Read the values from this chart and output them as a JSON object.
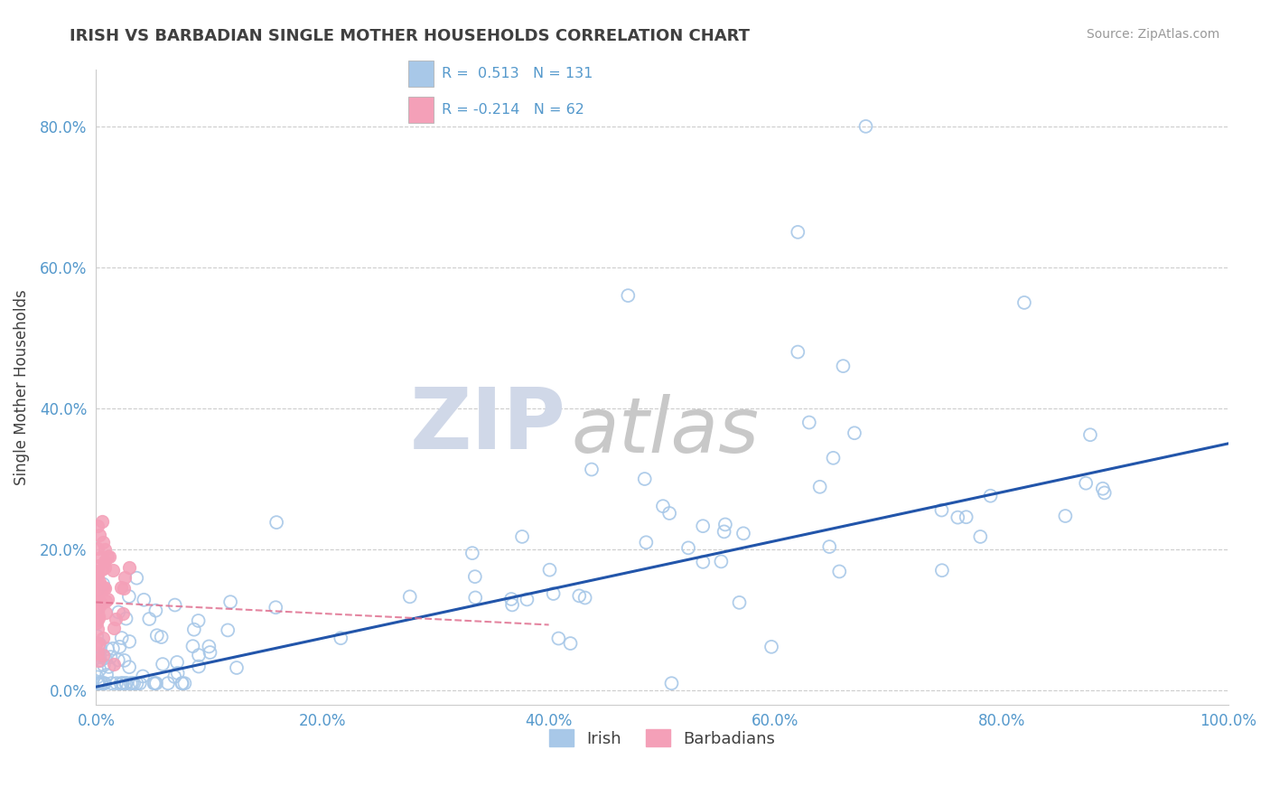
{
  "title": "IRISH VS BARBADIAN SINGLE MOTHER HOUSEHOLDS CORRELATION CHART",
  "source": "Source: ZipAtlas.com",
  "ylabel": "Single Mother Households",
  "xlim": [
    0.0,
    1.0
  ],
  "ylim": [
    -0.02,
    0.88
  ],
  "irish_R": 0.513,
  "irish_N": 131,
  "barbadian_R": -0.214,
  "barbadian_N": 62,
  "irish_color": "#a8c8e8",
  "barbadian_color": "#f4a0b8",
  "irish_line_color": "#2255aa",
  "barbadian_line_color": "#e07090",
  "watermark_zip": "ZIP",
  "watermark_atlas": "atlas",
  "watermark_color": "#d0d8e8",
  "watermark_atlas_color": "#c8c8c8",
  "grid_color": "#cccccc",
  "background_color": "#ffffff",
  "title_color": "#404040",
  "axis_label_color": "#5599cc",
  "legend_irish_label": "Irish",
  "legend_barbadian_label": "Barbadians"
}
